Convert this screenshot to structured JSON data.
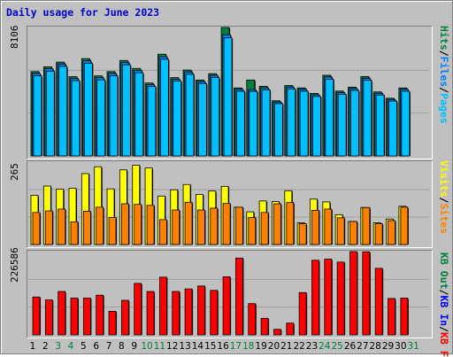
{
  "title": "Daily usage for June 2023",
  "colors": {
    "hits": "#008040",
    "files": "#0080ff",
    "pages": "#00c0ff",
    "visits": "#ffff00",
    "sites": "#ff8000",
    "kbf": "#ff0000",
    "kbin": "#0000ff",
    "kbout": "#008040",
    "weekend": "#008040",
    "weekday": "#000000"
  },
  "chart_data": [
    {
      "type": "bar",
      "title": "Daily usage for June 2023",
      "ylabel_max": "8106",
      "legend": [
        "Pages",
        "Files",
        "Hits"
      ],
      "categories": [
        "1",
        "2",
        "3",
        "4",
        "5",
        "6",
        "7",
        "8",
        "9",
        "10",
        "11",
        "12",
        "13",
        "14",
        "15",
        "16",
        "17",
        "18",
        "19",
        "20",
        "21",
        "22",
        "23",
        "24",
        "25",
        "26",
        "27",
        "28",
        "29",
        "30",
        "31"
      ],
      "ylim": [
        0,
        8106
      ],
      "series": [
        {
          "name": "Hits",
          "values": [
            5320,
            5620,
            5920,
            5000,
            6140,
            5050,
            5320,
            6020,
            5520,
            4600,
            6420,
            4940,
            5420,
            4790,
            5190,
            8106,
            4290,
            4790,
            4390,
            3480,
            4440,
            4290,
            3940,
            5090,
            4090,
            4340,
            5010,
            4040,
            3640,
            4290,
            0
          ]
        },
        {
          "name": "Files",
          "values": [
            5200,
            5500,
            5800,
            4880,
            6000,
            4940,
            5200,
            5900,
            5400,
            4500,
            6260,
            4840,
            5300,
            4690,
            5080,
            7650,
            4200,
            4180,
            4290,
            3400,
            4350,
            4200,
            3860,
            4980,
            4000,
            4250,
            4900,
            3950,
            3560,
            4200,
            0
          ]
        },
        {
          "name": "Pages",
          "values": [
            5050,
            5350,
            5650,
            4750,
            5850,
            4800,
            5050,
            5750,
            5250,
            4380,
            6100,
            4720,
            5150,
            4570,
            4950,
            7450,
            4080,
            4070,
            4170,
            3300,
            4230,
            4080,
            3750,
            4840,
            3890,
            4130,
            4770,
            3840,
            3460,
            4080,
            0
          ]
        }
      ]
    },
    {
      "type": "bar",
      "ylabel_max": "265",
      "legend": [
        "Sites",
        "Visits"
      ],
      "categories": [
        "1",
        "2",
        "3",
        "4",
        "5",
        "6",
        "7",
        "8",
        "9",
        "10",
        "11",
        "12",
        "13",
        "14",
        "15",
        "16",
        "17",
        "18",
        "19",
        "20",
        "21",
        "22",
        "23",
        "24",
        "25",
        "26",
        "27",
        "28",
        "29",
        "30",
        "31"
      ],
      "ylim": [
        0,
        265
      ],
      "series": [
        {
          "name": "Visits",
          "values": [
            158,
            188,
            178,
            181,
            228,
            250,
            179,
            240,
            255,
            246,
            156,
            176,
            193,
            161,
            172,
            187,
            120,
            105,
            140,
            138,
            173,
            70,
            146,
            137,
            96,
            74,
            119,
            70,
            82,
            123,
            0
          ]
        },
        {
          "name": "Sites",
          "values": [
            103,
            108,
            114,
            73,
            107,
            120,
            87,
            131,
            129,
            126,
            80,
            111,
            136,
            111,
            117,
            132,
            120,
            87,
            103,
            131,
            135,
            67,
            110,
            114,
            86,
            74,
            119,
            67,
            77,
            120,
            0
          ]
        }
      ]
    },
    {
      "type": "bar",
      "ylabel_max": "226586",
      "legend": [
        "KB F",
        "KB In",
        "KB Out"
      ],
      "categories": [
        "1",
        "2",
        "3",
        "4",
        "5",
        "6",
        "7",
        "8",
        "9",
        "10",
        "11",
        "12",
        "13",
        "14",
        "15",
        "16",
        "17",
        "18",
        "19",
        "20",
        "21",
        "22",
        "23",
        "24",
        "25",
        "26",
        "27",
        "28",
        "29",
        "30",
        "31"
      ],
      "ylim": [
        0,
        226586
      ],
      "series": [
        {
          "name": "KB F",
          "values": [
            103000,
            95000,
            118000,
            100000,
            100000,
            108000,
            64000,
            94000,
            140000,
            118000,
            157000,
            118000,
            125000,
            133000,
            121000,
            158000,
            209000,
            85000,
            45000,
            15000,
            32000,
            115000,
            203000,
            206000,
            198000,
            226586,
            226000,
            181000,
            99000,
            100000,
            0
          ]
        },
        {
          "name": "KB In",
          "values": [
            0,
            0,
            0,
            0,
            0,
            0,
            0,
            0,
            0,
            0,
            0,
            0,
            0,
            0,
            0,
            0,
            0,
            0,
            0,
            0,
            0,
            0,
            0,
            0,
            0,
            0,
            0,
            0,
            0,
            0,
            0
          ]
        },
        {
          "name": "KB Out",
          "values": [
            0,
            0,
            0,
            0,
            0,
            0,
            0,
            0,
            0,
            0,
            0,
            0,
            0,
            0,
            0,
            0,
            0,
            0,
            0,
            0,
            0,
            0,
            0,
            0,
            0,
            0,
            0,
            0,
            0,
            0,
            0
          ]
        }
      ]
    }
  ],
  "weekend_days": [
    "3",
    "4",
    "10",
    "11",
    "17",
    "18",
    "24",
    "25",
    "31"
  ]
}
